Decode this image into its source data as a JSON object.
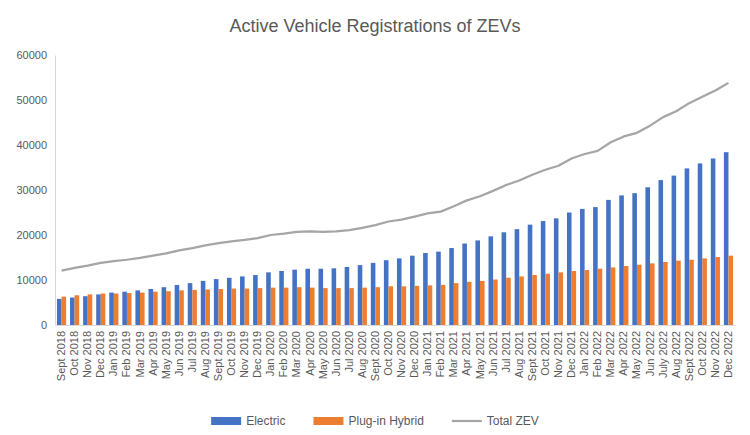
{
  "chart_data": {
    "type": "bar",
    "title": "Active Vehicle Registrations of ZEVs",
    "categories": [
      "Sept 2018",
      "Oct 2018",
      "Nov 2018",
      "Dec 2018",
      "Jan 2019",
      "Feb 2019",
      "Mar 2019",
      "Apr 2019",
      "May 2019",
      "Jun 2019",
      "Jul 2019",
      "Aug 2019",
      "Sept 2019",
      "Oct 2019",
      "Nov 2019",
      "Dec 2019",
      "Jan 2020",
      "Feb 2020",
      "Mar 2020",
      "Apr 2020",
      "May 2020",
      "Jun 2020",
      "Jul 2020",
      "Aug 2020",
      "Sept 2020",
      "Oct 2020",
      "Nov 2020",
      "Dec 2020",
      "Jan 2021",
      "Feb 2021",
      "Mar 2021",
      "Apr 2021",
      "May 2021",
      "Jun 2021",
      "Jul 2021",
      "Aug 2021",
      "Sept 2021",
      "Oct 2021",
      "Nov 2021",
      "Dec 2021",
      "Jan 2022",
      "Feb 2022",
      "Mar 2022",
      "Apr 2022",
      "May 2022",
      "Jun 2022",
      "July 2022",
      "Aug 2022",
      "Sept 2022",
      "Oct 2022",
      "Nov 2022",
      "Dec 2022"
    ],
    "series": [
      {
        "name": "Electric",
        "color": "#4472c4",
        "type": "bar",
        "values": [
          5800,
          6100,
          6400,
          6800,
          7200,
          7400,
          7700,
          8000,
          8400,
          8900,
          9300,
          9800,
          10200,
          10500,
          10800,
          11100,
          11700,
          12000,
          12300,
          12500,
          12500,
          12600,
          12900,
          13300,
          13800,
          14400,
          14800,
          15400,
          16000,
          16300,
          17100,
          18100,
          18800,
          19700,
          20600,
          21300,
          22300,
          23100,
          23700,
          25000,
          25800,
          26200,
          27800,
          28800,
          29300,
          30600,
          32200,
          33200,
          34800,
          35900,
          37000,
          38400
        ]
      },
      {
        "name": "Plug-in Hybrid",
        "color": "#ed7d31",
        "type": "bar",
        "values": [
          6300,
          6600,
          6800,
          7000,
          7000,
          7100,
          7200,
          7400,
          7500,
          7700,
          7800,
          7900,
          8000,
          8100,
          8100,
          8200,
          8300,
          8300,
          8400,
          8300,
          8200,
          8200,
          8200,
          8300,
          8400,
          8600,
          8600,
          8700,
          8800,
          8900,
          9300,
          9600,
          9800,
          10100,
          10500,
          10800,
          11100,
          11400,
          11700,
          12000,
          12200,
          12500,
          12800,
          13100,
          13400,
          13700,
          14000,
          14300,
          14500,
          14800,
          15100,
          15400
        ]
      },
      {
        "name": "Total ZEV",
        "color": "#a5a5a5",
        "type": "line",
        "values": [
          12100,
          12700,
          13200,
          13800,
          14200,
          14500,
          14900,
          15400,
          15900,
          16600,
          17100,
          17700,
          18200,
          18600,
          18900,
          19300,
          20000,
          20300,
          20700,
          20800,
          20700,
          20800,
          21100,
          21600,
          22200,
          23000,
          23400,
          24100,
          24800,
          25200,
          26400,
          27700,
          28600,
          29800,
          31100,
          32100,
          33400,
          34500,
          35400,
          37000,
          38000,
          38700,
          40600,
          41900,
          42700,
          44300,
          46200,
          47500,
          49300,
          50700,
          52100,
          53800
        ]
      }
    ],
    "ylim": [
      0,
      60000
    ],
    "yticks": [
      0,
      10000,
      20000,
      30000,
      40000,
      50000,
      60000
    ],
    "grid": false,
    "legend": "bottom"
  }
}
